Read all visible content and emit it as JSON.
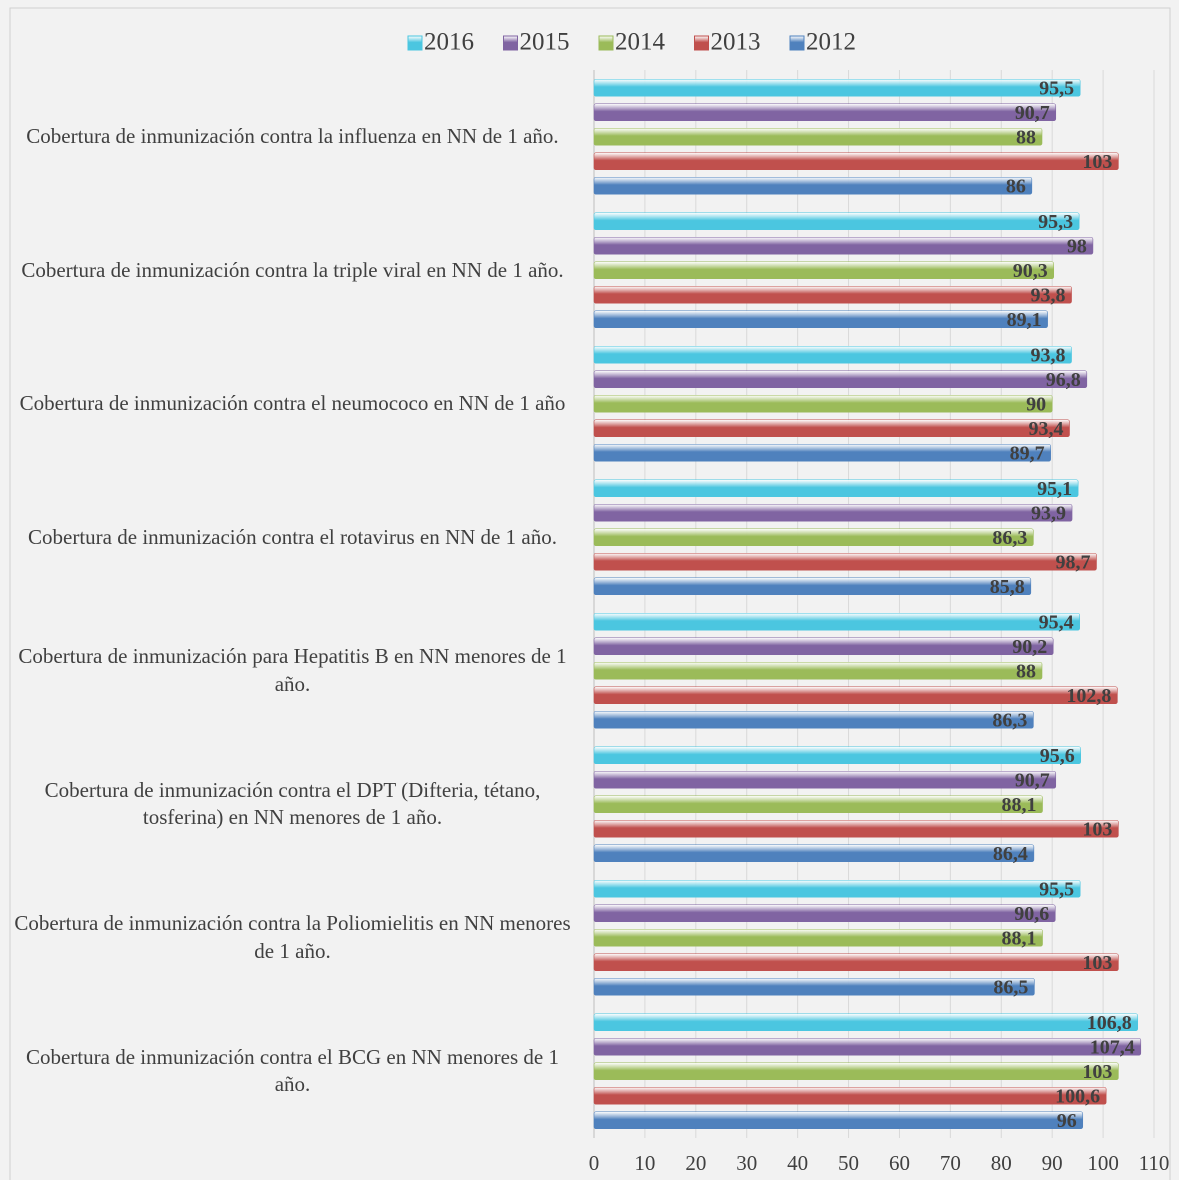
{
  "chart_data": {
    "type": "bar",
    "orientation": "horizontal",
    "categories": [
      "Cobertura de inmunización contra la influenza  en NN de 1 año.",
      "Cobertura de inmunización contra la triple viral en NN de 1 año.",
      "Cobertura de inmunización contra el neumococo en NN de 1 año",
      "Cobertura de inmunización contra el rotavirus en NN de 1 año.",
      "Cobertura de inmunización para Hepatitis B en NN menores de 1 año.",
      "Cobertura de inmunización contra el DPT (Difteria, tétano, tosferina) en NN menores de 1 año.",
      "Cobertura de inmunización contra la Poliomielitis en NN menores de 1 año.",
      "Cobertura de inmunización contra el BCG en NN menores de 1 año."
    ],
    "series": [
      {
        "name": "2016",
        "color": "#4bc6e0",
        "values": [
          95.5,
          95.3,
          93.8,
          95.1,
          95.4,
          95.6,
          95.5,
          106.8
        ],
        "value_labels": [
          "95,5",
          "95,3",
          "93,8",
          "95,1",
          "95,4",
          "95,6",
          "95,5",
          "106,8"
        ]
      },
      {
        "name": "2015",
        "color": "#8064a2",
        "values": [
          90.7,
          98,
          96.8,
          93.9,
          90.2,
          90.7,
          90.6,
          107.4
        ],
        "value_labels": [
          "90,7",
          "98",
          "96,8",
          "93,9",
          "90,2",
          "90,7",
          "90,6",
          "107,4"
        ]
      },
      {
        "name": "2014",
        "color": "#9bbb59",
        "values": [
          88,
          90.3,
          90,
          86.3,
          88,
          88.1,
          88.1,
          103
        ],
        "value_labels": [
          "88",
          "90,3",
          "90",
          "86,3",
          "88",
          "88,1",
          "88,1",
          "103"
        ]
      },
      {
        "name": "2013",
        "color": "#c0504d",
        "values": [
          103,
          93.8,
          93.4,
          98.7,
          102.8,
          103,
          103,
          100.6
        ],
        "value_labels": [
          "103",
          "93,8",
          "93,4",
          "98,7",
          "102,8",
          "103",
          "103",
          "100,6"
        ]
      },
      {
        "name": "2012",
        "color": "#4f81bd",
        "values": [
          86,
          89.1,
          89.7,
          85.8,
          86.3,
          86.4,
          86.5,
          96
        ],
        "value_labels": [
          "86",
          "89,1",
          "89,7",
          "85,8",
          "86,3",
          "86,4",
          "86,5",
          "96"
        ]
      }
    ],
    "xlim": [
      0,
      110
    ],
    "xticks": [
      0,
      10,
      20,
      30,
      40,
      50,
      60,
      70,
      80,
      90,
      100,
      110
    ],
    "grid": true,
    "legend": "top"
  }
}
